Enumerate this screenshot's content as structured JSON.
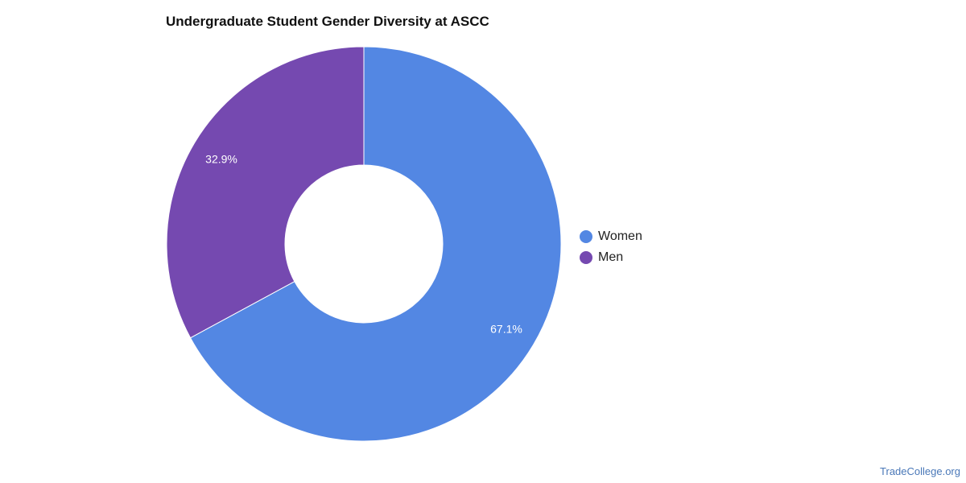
{
  "chart_data": {
    "type": "pie",
    "title": "Undergraduate Student Gender Diversity at ASCC",
    "donut": true,
    "legend_position": "right",
    "slices": [
      {
        "label": "Women",
        "value": 67.1,
        "display": "67.1%",
        "color": "#5387e3"
      },
      {
        "label": "Men",
        "value": 32.9,
        "display": "32.9%",
        "color": "#7549b0"
      }
    ]
  },
  "footer": {
    "watermark": "TradeCollege.org"
  }
}
